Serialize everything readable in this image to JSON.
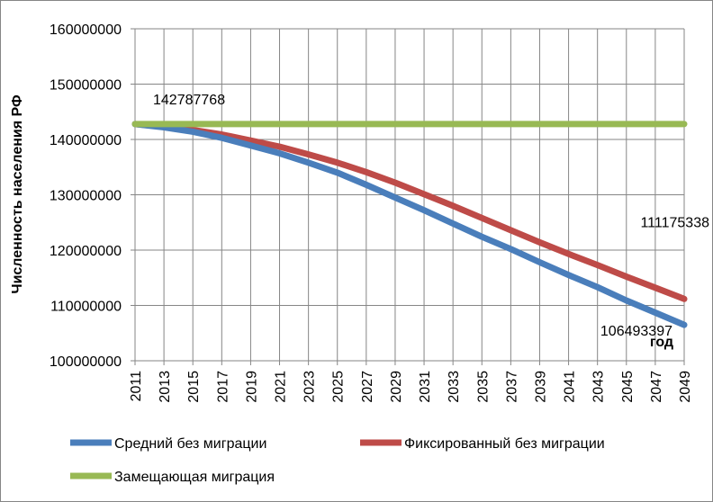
{
  "chart_data": {
    "type": "line",
    "title": "",
    "xlabel": "год",
    "ylabel": "Численность населения РФ",
    "ylim": [
      100000000,
      160000000
    ],
    "yticks": [
      100000000,
      110000000,
      120000000,
      130000000,
      140000000,
      150000000,
      160000000
    ],
    "ytick_labels": [
      "100000000",
      "110000000",
      "120000000",
      "130000000",
      "140000000",
      "150000000",
      "160000000"
    ],
    "xlim": [
      2011,
      2049
    ],
    "xticks": [
      2011,
      2013,
      2015,
      2017,
      2019,
      2021,
      2023,
      2025,
      2027,
      2029,
      2031,
      2033,
      2035,
      2037,
      2039,
      2041,
      2043,
      2045,
      2047,
      2049
    ],
    "xtick_labels": [
      "2011",
      "2013",
      "2015",
      "2017",
      "2019",
      "2021",
      "2023",
      "2025",
      "2027",
      "2029",
      "2031",
      "2033",
      "2035",
      "2037",
      "2039",
      "2041",
      "2043",
      "2045",
      "2047",
      "2049"
    ],
    "grid": {
      "y": true,
      "x": true
    },
    "legend_position": "bottom",
    "x": [
      2011,
      2013,
      2015,
      2017,
      2019,
      2021,
      2023,
      2025,
      2027,
      2029,
      2031,
      2033,
      2035,
      2037,
      2039,
      2041,
      2043,
      2045,
      2047,
      2049
    ],
    "series": [
      {
        "name": "Средний без миграции",
        "color": "#4a7ebb",
        "values": [
          142787768,
          142200000,
          141400000,
          140300000,
          138900000,
          137500000,
          135800000,
          134000000,
          131800000,
          129500000,
          127200000,
          124800000,
          122400000,
          120200000,
          117800000,
          115500000,
          113300000,
          110900000,
          108700000,
          106493397
        ]
      },
      {
        "name": "Фиксированный без миграции",
        "color": "#be4b48",
        "values": [
          142787768,
          142300000,
          141700000,
          140900000,
          139800000,
          138700000,
          137300000,
          135800000,
          134100000,
          132200000,
          130100000,
          128000000,
          125800000,
          123600000,
          121400000,
          119300000,
          117300000,
          115200000,
          113200000,
          111175338
        ]
      },
      {
        "name": "Замещающая миграция",
        "color": "#98b954",
        "values": [
          142787768,
          142787768,
          142787768,
          142787768,
          142787768,
          142787768,
          142787768,
          142787768,
          142787768,
          142787768,
          142787768,
          142787768,
          142787768,
          142787768,
          142787768,
          142787768,
          142787768,
          142787768,
          142787768,
          142787768
        ]
      }
    ],
    "annotations": [
      {
        "text": "142787768",
        "x": 2011,
        "y": 142787768
      },
      {
        "text": "111175338",
        "x": 2049,
        "y": 111175338
      },
      {
        "text": "106493397",
        "x": 2049,
        "y": 106493397
      }
    ]
  }
}
